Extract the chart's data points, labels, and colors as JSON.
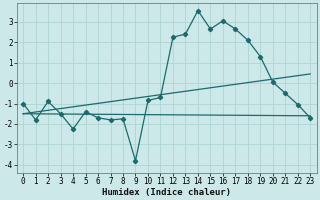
{
  "xlabel": "Humidex (Indice chaleur)",
  "background_color": "#cde8e8",
  "grid_color": "#aed4d4",
  "line_color": "#1a6b6b",
  "xlim": [
    -0.5,
    23.5
  ],
  "ylim": [
    -4.4,
    3.9
  ],
  "yticks": [
    -4,
    -3,
    -2,
    -1,
    0,
    1,
    2,
    3
  ],
  "xticks": [
    0,
    1,
    2,
    3,
    4,
    5,
    6,
    7,
    8,
    9,
    10,
    11,
    12,
    13,
    14,
    15,
    16,
    17,
    18,
    19,
    20,
    21,
    22,
    23
  ],
  "line1_x": [
    0,
    1,
    2,
    3,
    4,
    5,
    6,
    7,
    8,
    9,
    10,
    11,
    12,
    13,
    14,
    15,
    16,
    17,
    18,
    19,
    20,
    21,
    22,
    23
  ],
  "line1_y": [
    -1.0,
    -1.8,
    -0.9,
    -1.5,
    -2.25,
    -1.4,
    -1.7,
    -1.8,
    -1.75,
    -3.8,
    -0.85,
    -0.7,
    2.25,
    2.4,
    3.55,
    2.65,
    3.05,
    2.65,
    2.1,
    1.3,
    0.05,
    -0.5,
    -1.05,
    -1.7
  ],
  "line2_x": [
    0,
    23
  ],
  "line2_y": [
    -1.5,
    -1.6
  ],
  "line3_x": [
    0,
    23
  ],
  "line3_y": [
    -1.5,
    0.45
  ],
  "tick_fontsize": 5.5,
  "xlabel_fontsize": 6.5
}
